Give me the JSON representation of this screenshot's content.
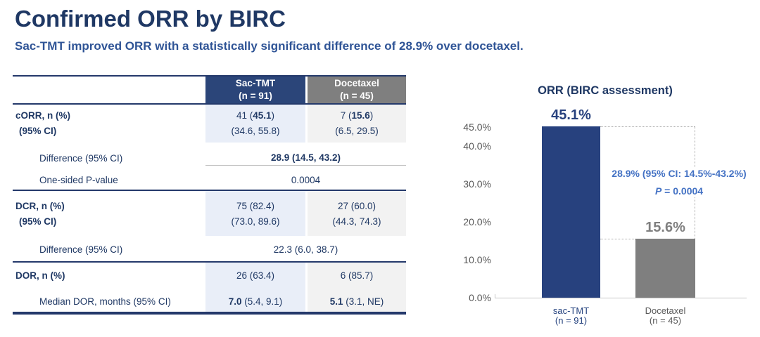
{
  "page": {
    "title": "Confirmed ORR by BIRC",
    "subtitle": "Sac-TMT improved ORR with a statistically significant difference of 28.9% over docetaxel."
  },
  "colors": {
    "title_navy": "#1F3864",
    "subtitle_blue": "#2F5496",
    "header_navy_bg": "#2B4579",
    "header_gray_bg": "#7F7F7F",
    "sac_column_bg": "#E9EEF8",
    "doc_column_bg": "#F2F2F2",
    "annotation_blue": "#4472C4",
    "bar_navy": "#27417E",
    "bar_gray": "#7F7F7F"
  },
  "table": {
    "header": {
      "sac_line1": "Sac-TMT",
      "sac_line2": "(n = 91)",
      "doc_line1": "Docetaxel",
      "doc_line2": "(n = 45)"
    },
    "corr": {
      "label_line1": "cORR, n (%)",
      "label_line2": "(95% CI)",
      "sac_pre": "41 (",
      "sac_bold": "45.1",
      "sac_post": ")",
      "doc_pre": "7 (",
      "doc_bold": "15.6",
      "doc_post": ")",
      "sac_ci": "(34.6, 55.8)",
      "doc_ci": "(6.5, 29.5)",
      "diff_label": "Difference (95% CI)",
      "diff_value": "28.9 (14.5, 43.2)",
      "pval_label": "One-sided P-value",
      "pval_value": "0.0004"
    },
    "dcr": {
      "label_line1": "DCR, n (%)",
      "label_line2": "(95% CI)",
      "sac": "75 (82.4)",
      "doc": "27 (60.0)",
      "sac_ci": "(73.0, 89.6)",
      "doc_ci": "(44.3, 74.3)",
      "diff_label": "Difference (95% CI)",
      "diff_value": "22.3 (6.0, 38.7)"
    },
    "dor": {
      "label_line1": "DOR, n (%)",
      "label_line2": "Median DOR, months (95% CI)",
      "sac": "26 (63.4)",
      "doc": "6 (85.7)",
      "sac_bold": "7.0",
      "sac_rest": " (5.4, 9.1)",
      "doc_bold": "5.1",
      "doc_rest": " (3.1, NE)"
    }
  },
  "chart_data": [
    {
      "type": "bar",
      "title": "ORR (BIRC assessment)",
      "categories": [
        "sac-TMT",
        "Docetaxel"
      ],
      "category_sublabels": [
        "(n = 91)",
        "(n = 45)"
      ],
      "values": [
        45.1,
        15.6
      ],
      "value_labels": [
        "45.1%",
        "15.6%"
      ],
      "bar_colors": [
        "#27417E",
        "#7F7F7F"
      ],
      "label_colors": [
        "#27417E",
        "#7F7F7F"
      ],
      "ylim": [
        0,
        45
      ],
      "ytick_values": [
        45,
        40,
        30,
        20,
        10,
        0
      ],
      "ytick_labels": [
        "45.0%",
        "40.0%",
        "30.0%",
        "20.0%",
        "10.0%",
        "0.0%"
      ],
      "grid": false,
      "legend": "none",
      "annotation": {
        "line1": "28.9% (95% CI: 14.5%-43.2%)",
        "p_italic": "P",
        "p_rest": " = 0.0004",
        "color": "#4472C4"
      }
    },
    {
      "type": "table",
      "columns": [
        "",
        "Sac-TMT (n = 91)",
        "Docetaxel (n = 45)"
      ],
      "rows": [
        [
          "cORR, n (%)",
          "41 (45.1)",
          "7 (15.6)"
        ],
        [
          "(95% CI)",
          "(34.6, 55.8)",
          "(6.5, 29.5)"
        ],
        [
          "Difference (95% CI)",
          "28.9 (14.5, 43.2)",
          ""
        ],
        [
          "One-sided P-value",
          "0.0004",
          ""
        ],
        [
          "DCR, n (%)",
          "75 (82.4)",
          "27 (60.0)"
        ],
        [
          "(95% CI)",
          "(73.0, 89.6)",
          "(44.3, 74.3)"
        ],
        [
          "Difference (95% CI)",
          "22.3 (6.0, 38.7)",
          ""
        ],
        [
          "DOR, n (%)",
          "26 (63.4)",
          "6 (85.7)"
        ],
        [
          "Median DOR, months (95% CI)",
          "7.0 (5.4, 9.1)",
          "5.1 (3.1, NE)"
        ]
      ]
    }
  ]
}
